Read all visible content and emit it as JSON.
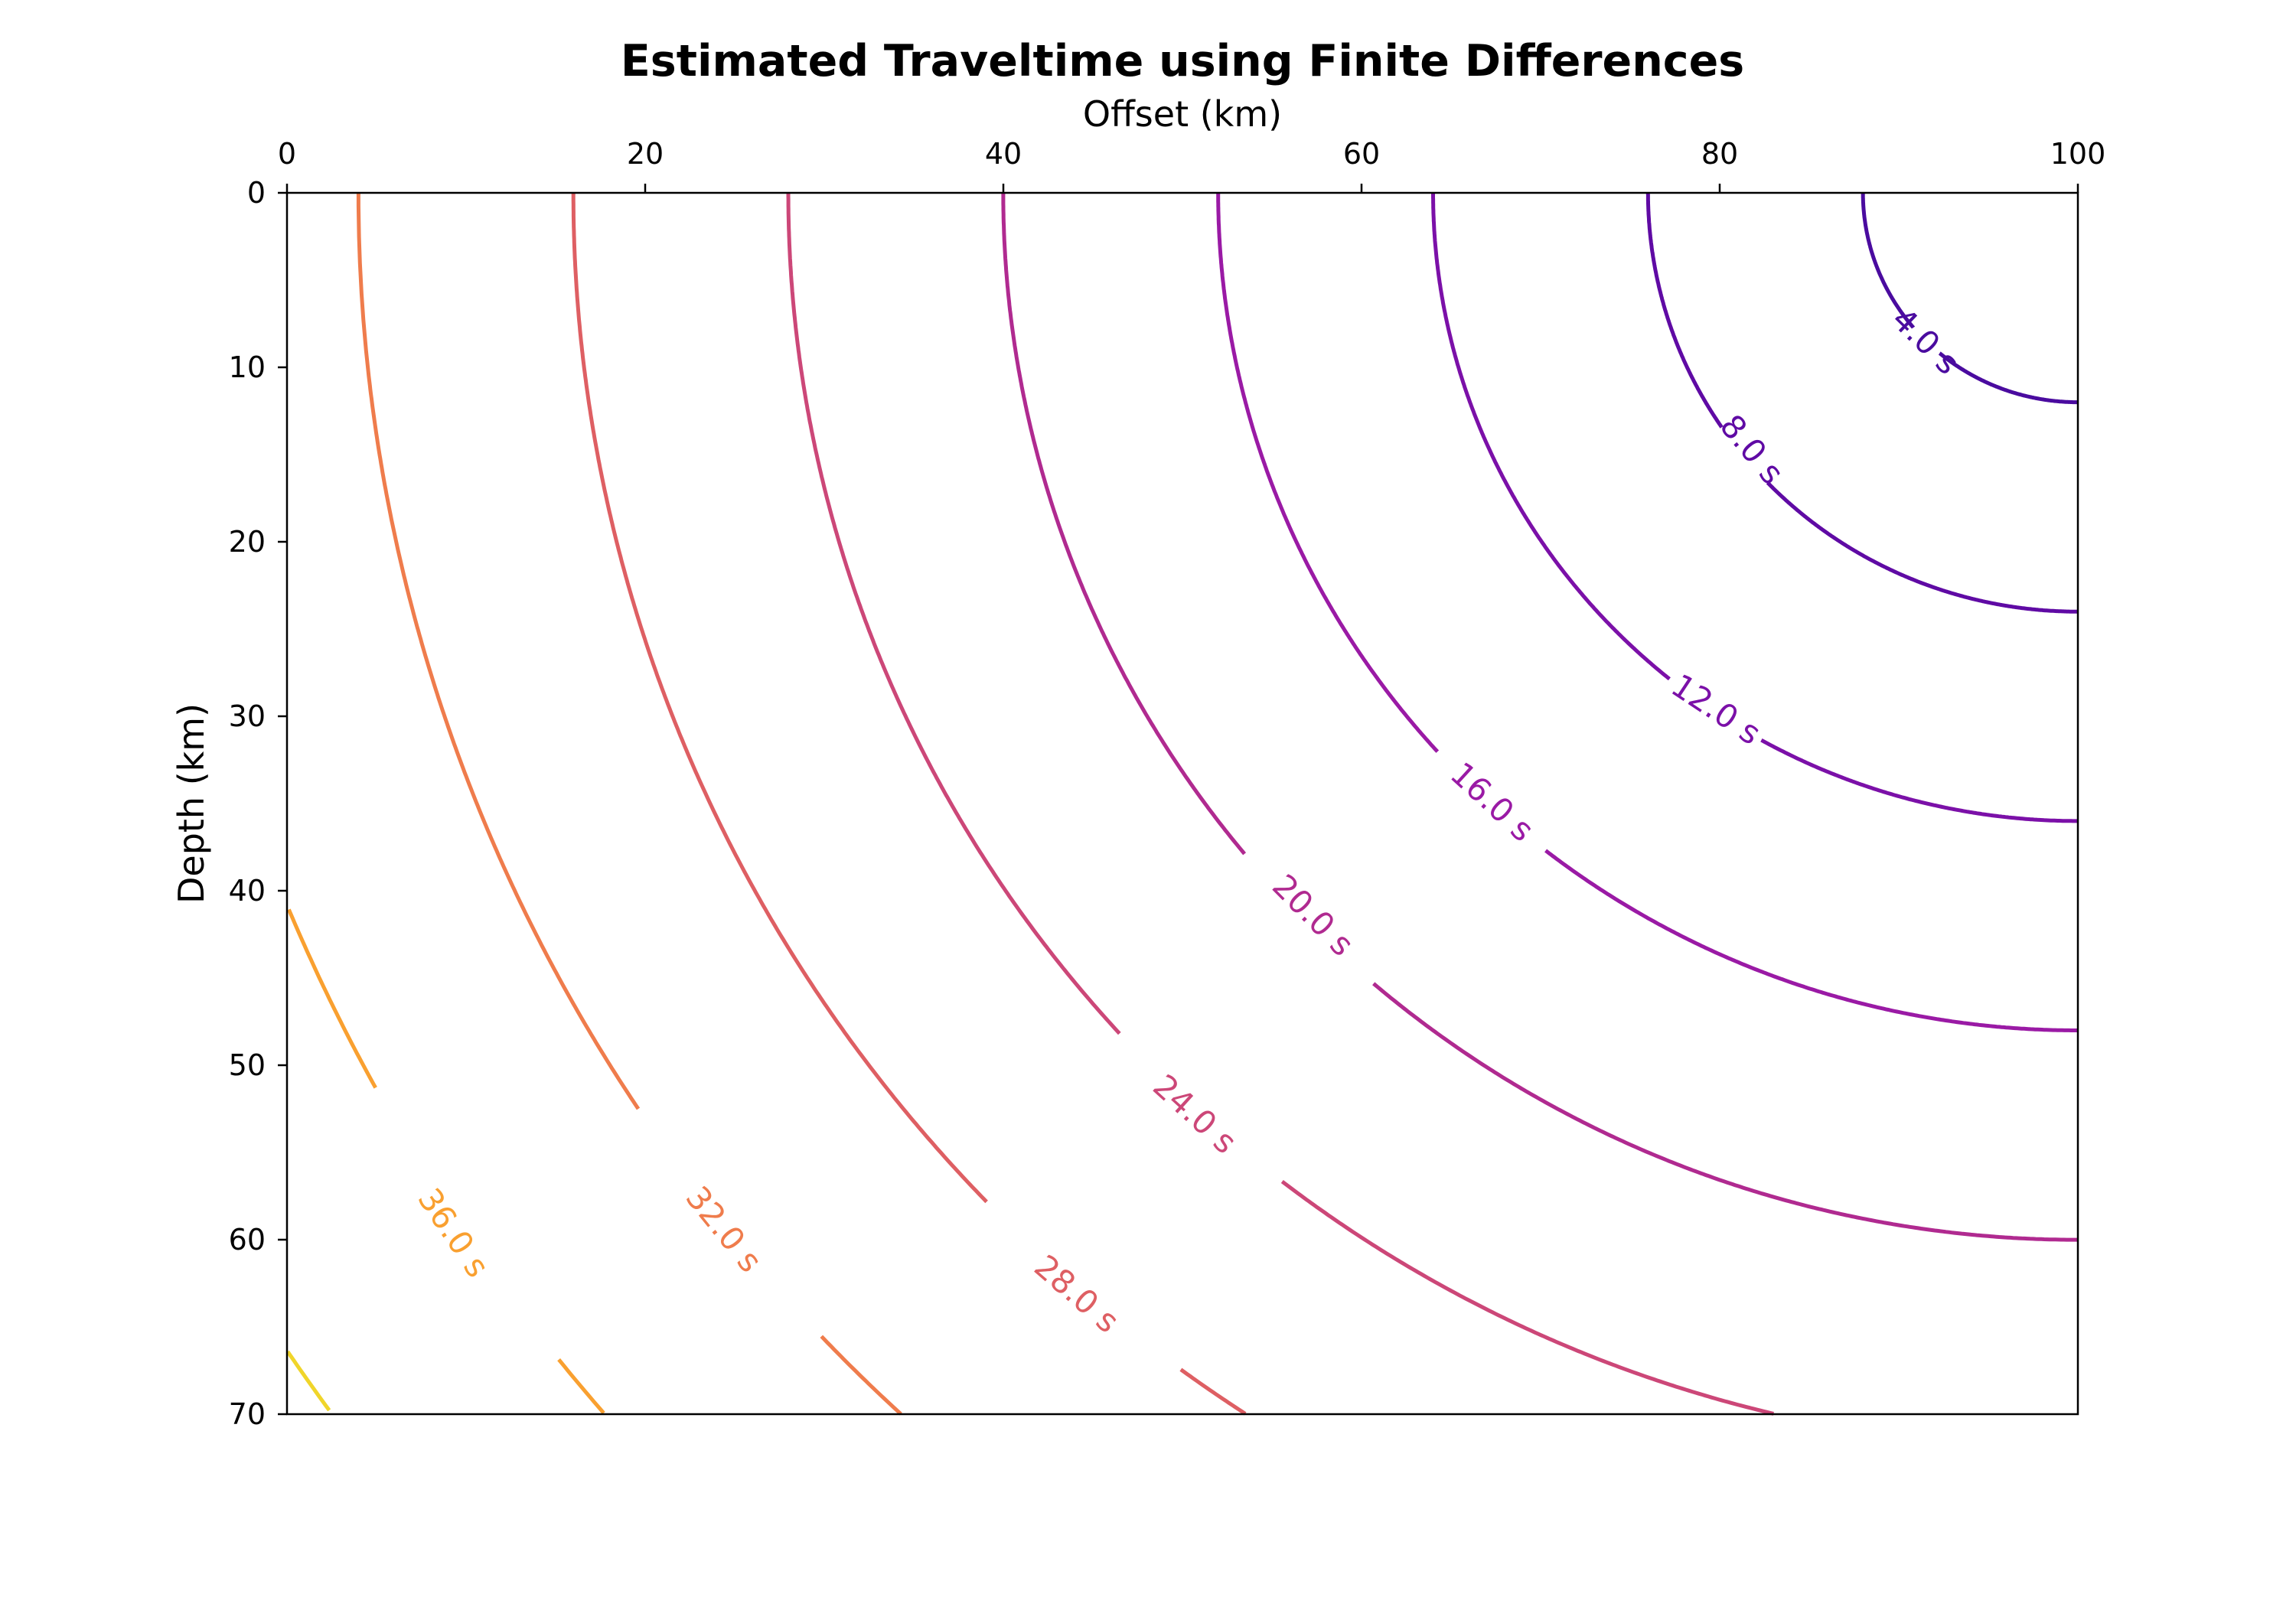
{
  "chart_data": {
    "type": "contour",
    "title": "Estimated Traveltime using Finite Differences",
    "xlabel": "Offset (km)",
    "ylabel": "Depth (km)",
    "xlim": [
      0,
      100
    ],
    "ylim": [
      0,
      70
    ],
    "y_inverted": true,
    "x_axis_position": "top",
    "x_ticks": [
      0,
      20,
      40,
      60,
      80,
      100
    ],
    "y_ticks": [
      0,
      10,
      20,
      30,
      40,
      50,
      60,
      70
    ],
    "source": {
      "x": 100,
      "y": 0
    },
    "traveltime_per_km": 0.3333,
    "colormap": "plasma",
    "levels": [
      {
        "value": 4,
        "label": "4.0 s",
        "color": "#4a0b9f"
      },
      {
        "value": 8,
        "label": "8.0 s",
        "color": "#5f0aa4"
      },
      {
        "value": 12,
        "label": "12.0 s",
        "color": "#7b10a8"
      },
      {
        "value": 16,
        "label": "16.0 s",
        "color": "#9a1aa5"
      },
      {
        "value": 20,
        "label": "20.0 s",
        "color": "#b02a90"
      },
      {
        "value": 24,
        "label": "24.0 s",
        "color": "#cc4778"
      },
      {
        "value": 28,
        "label": "28.0 s",
        "color": "#de5f63"
      },
      {
        "value": 32,
        "label": "32.0 s",
        "color": "#ef7c4c"
      },
      {
        "value": 36,
        "label": "36.0 s",
        "color": "#f9a030"
      },
      {
        "value": 40,
        "label": "",
        "color": "#f0d52a"
      }
    ],
    "labeled_points": [
      {
        "value": 4,
        "x": 91.5,
        "y": 8.5
      },
      {
        "value": 8,
        "x": 81.8,
        "y": 14.7
      },
      {
        "value": 12,
        "x": 79.8,
        "y": 29.6
      },
      {
        "value": 16,
        "x": 67.3,
        "y": 34.9
      },
      {
        "value": 20,
        "x": 57.3,
        "y": 41.4
      },
      {
        "value": 24,
        "x": 50.7,
        "y": 52.8
      },
      {
        "value": 28,
        "x": 44.1,
        "y": 63.1
      },
      {
        "value": 32,
        "x": 24.4,
        "y": 59.4
      },
      {
        "value": 36,
        "x": 9.3,
        "y": 59.6
      }
    ]
  }
}
